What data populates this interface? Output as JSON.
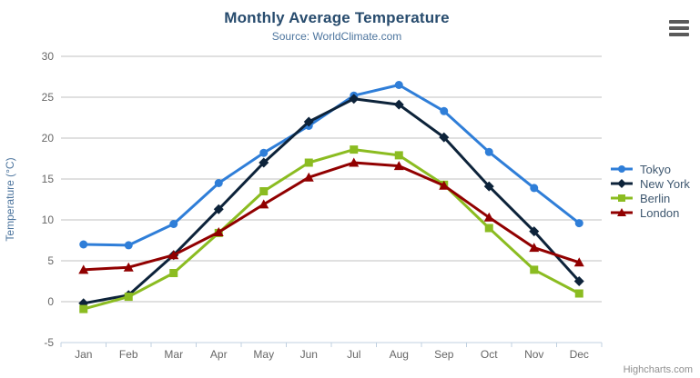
{
  "chart_data": {
    "type": "line",
    "title": "Monthly Average Temperature",
    "subtitle": "Source: WorldClimate.com",
    "xlabel": "",
    "ylabel": "Temperature (°C)",
    "ylim": [
      -5,
      30
    ],
    "ytick_step": 5,
    "grid": true,
    "legend_position": "right",
    "categories": [
      "Jan",
      "Feb",
      "Mar",
      "Apr",
      "May",
      "Jun",
      "Jul",
      "Aug",
      "Sep",
      "Oct",
      "Nov",
      "Dec"
    ],
    "series": [
      {
        "name": "Tokyo",
        "color": "#2f7ed8",
        "marker": "circle",
        "values": [
          7.0,
          6.9,
          9.5,
          14.5,
          18.2,
          21.5,
          25.2,
          26.5,
          23.3,
          18.3,
          13.9,
          9.6
        ]
      },
      {
        "name": "New York",
        "color": "#0d233a",
        "marker": "diamond",
        "values": [
          -0.2,
          0.8,
          5.7,
          11.3,
          17.0,
          22.0,
          24.8,
          24.1,
          20.1,
          14.1,
          8.6,
          2.5
        ]
      },
      {
        "name": "Berlin",
        "color": "#8bbc21",
        "marker": "square",
        "values": [
          -0.9,
          0.6,
          3.5,
          8.4,
          13.5,
          17.0,
          18.6,
          17.9,
          14.3,
          9.0,
          3.9,
          1.0
        ]
      },
      {
        "name": "London",
        "color": "#910000",
        "marker": "triangle",
        "values": [
          3.9,
          4.2,
          5.7,
          8.5,
          11.9,
          15.2,
          17.0,
          16.6,
          14.2,
          10.3,
          6.6,
          4.8
        ]
      }
    ],
    "style": {
      "grid_color": "#c0c0c0",
      "axis_color": "#c0d0e0",
      "tick_label_color": "#666666",
      "title_color": "#274b6d",
      "subtitle_color": "#4d759e",
      "legend_text_color": "#3e576f"
    }
  },
  "toolbar": {
    "export_menu_icon": "hamburger-icon"
  },
  "credit": {
    "label": "Highcharts.com"
  }
}
